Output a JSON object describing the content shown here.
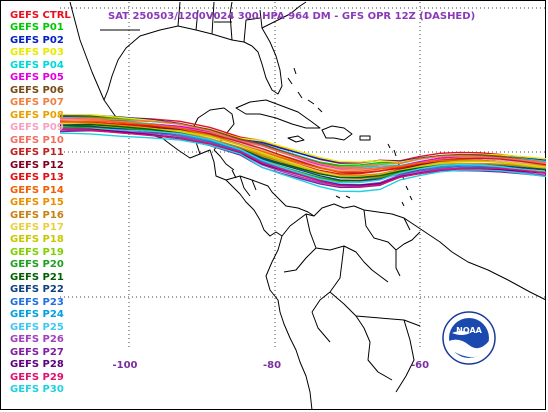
{
  "title": {
    "text": "SAT 250503/1200V024  300 HPA 964 DM - GFS OPR 12Z (DASHED)",
    "color": "#8a3ab9"
  },
  "legend": {
    "items": [
      {
        "label": "GEFS CTRL",
        "color": "#e8101f"
      },
      {
        "label": "GEFS P01",
        "color": "#00c800"
      },
      {
        "label": "GEFS P02",
        "color": "#0020c8"
      },
      {
        "label": "GEFS P03",
        "color": "#e8e800"
      },
      {
        "label": "GEFS P04",
        "color": "#00d8d8"
      },
      {
        "label": "GEFS P05",
        "color": "#e000e0"
      },
      {
        "label": "GEFS P06",
        "color": "#7a4a12"
      },
      {
        "label": "GEFS P07",
        "color": "#f08040"
      },
      {
        "label": "GEFS P08",
        "color": "#e8a000"
      },
      {
        "label": "GEFS P09",
        "color": "#f8a0c0"
      },
      {
        "label": "GEFS P10",
        "color": "#f07060"
      },
      {
        "label": "GEFS P11",
        "color": "#c02020"
      },
      {
        "label": "GEFS P12",
        "color": "#800020"
      },
      {
        "label": "GEFS P13",
        "color": "#e01010"
      },
      {
        "label": "GEFS P14",
        "color": "#f06000"
      },
      {
        "label": "GEFS P15",
        "color": "#e89000"
      },
      {
        "label": "GEFS P16",
        "color": "#c88010"
      },
      {
        "label": "GEFS P17",
        "color": "#e8d040"
      },
      {
        "label": "GEFS P18",
        "color": "#c8c800"
      },
      {
        "label": "GEFS P19",
        "color": "#80d000"
      },
      {
        "label": "GEFS P20",
        "color": "#20a020"
      },
      {
        "label": "GEFS P21",
        "color": "#006000"
      },
      {
        "label": "GEFS P22",
        "color": "#104080"
      },
      {
        "label": "GEFS P23",
        "color": "#2070e0"
      },
      {
        "label": "GEFS P24",
        "color": "#00a0e0"
      },
      {
        "label": "GEFS P25",
        "color": "#40c8f0"
      },
      {
        "label": "GEFS P26",
        "color": "#a040c0"
      },
      {
        "label": "GEFS P27",
        "color": "#8020a0"
      },
      {
        "label": "GEFS P28",
        "color": "#600080"
      },
      {
        "label": "GEFS P29",
        "color": "#e01070"
      },
      {
        "label": "GEFS P30",
        "color": "#20d0e0"
      }
    ]
  },
  "axis": {
    "lon_labels": [
      {
        "value": -100,
        "text": "-100"
      },
      {
        "value": -80,
        "text": "-80"
      },
      {
        "value": -60,
        "text": "-60"
      }
    ],
    "grid": "dotted",
    "label_color": "#7a2fa0"
  },
  "logo": {
    "name": "noaa-logo",
    "text": "NOAA"
  }
}
